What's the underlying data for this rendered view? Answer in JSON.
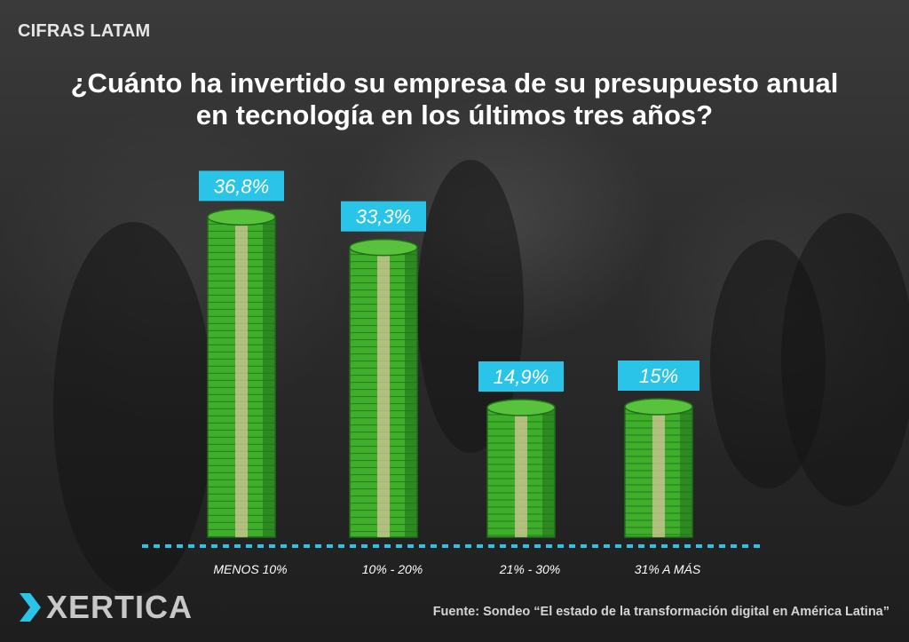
{
  "header": {
    "tag": "CIFRAS LATAM"
  },
  "title_lines": [
    "¿Cuánto ha invertido su empresa de su presupuesto anual",
    "en tecnología en los últimos tres años?"
  ],
  "footer": {
    "logo_text": "XERTICA",
    "source": "Fuente: Sondeo “El estado de la transformación digital en América Latina”"
  },
  "colors": {
    "accent": "#2ac4e8",
    "money_green": "#3fae2a",
    "money_dark": "#1f6e1a",
    "band": "#d8c69a"
  },
  "chart_data": {
    "type": "bar",
    "categories": [
      "MENOS 10%",
      "10% - 20%",
      "21% - 30%",
      "31% A MÁS"
    ],
    "values": [
      36.8,
      33.3,
      14.9,
      15
    ],
    "value_labels": [
      "36,8%",
      "33,3%",
      "14,9%",
      "15%"
    ],
    "ylim": [
      0,
      40
    ]
  }
}
